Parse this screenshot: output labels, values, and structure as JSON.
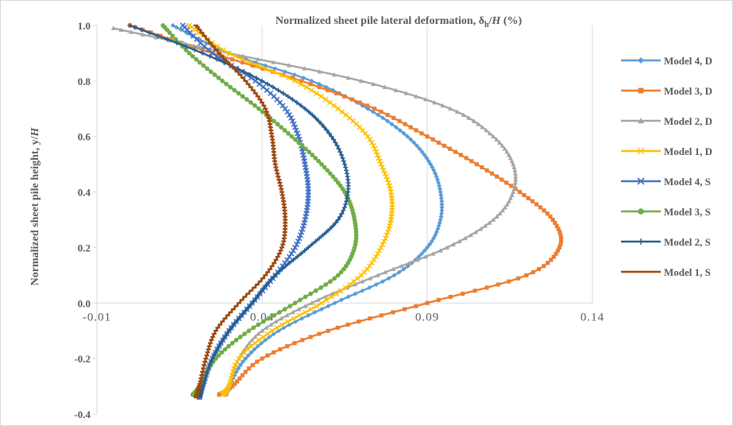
{
  "chart_data": {
    "type": "line",
    "title": "Normalized sheet pile  lateral  deformation, δh/H (%)",
    "title_parts": {
      "pre": "Normalized sheet pile  lateral  deformation, δ",
      "sub": "h",
      "slash": "/",
      "italic": "H",
      "post": " (%)"
    },
    "ylabel": "Normalized sheet pile height, y/H",
    "ylabel_parts": {
      "pre": "Normalized sheet pile height, y/",
      "italic": "H"
    },
    "xlabel": "",
    "xlim": [
      -0.01,
      0.14
    ],
    "ylim": [
      -0.4,
      1.0
    ],
    "x_ticks": [
      "-0.01",
      "0.04",
      "0.09",
      "0.14"
    ],
    "y_ticks": [
      "1.0",
      "0.8",
      "0.6",
      "0.4",
      "0.2",
      "0.0",
      "-0.2",
      "-0.4"
    ],
    "grid": "vertical",
    "legend_position": "right",
    "series": [
      {
        "name": "Model 4, D",
        "color": "#5b9bd5",
        "marker": "diamond",
        "points": [
          [
            0.013,
            1.0
          ],
          [
            0.03,
            0.9
          ],
          [
            0.055,
            0.8
          ],
          [
            0.072,
            0.7
          ],
          [
            0.084,
            0.6
          ],
          [
            0.091,
            0.5
          ],
          [
            0.094,
            0.4
          ],
          [
            0.094,
            0.3
          ],
          [
            0.09,
            0.2
          ],
          [
            0.08,
            0.1
          ],
          [
            0.062,
            0.0
          ],
          [
            0.045,
            -0.1
          ],
          [
            0.035,
            -0.2
          ],
          [
            0.03,
            -0.3
          ],
          [
            0.029,
            -0.33
          ]
        ]
      },
      {
        "name": "Model 3, D",
        "color": "#ed7d31",
        "marker": "square",
        "points": [
          [
            0.0,
            1.0
          ],
          [
            0.025,
            0.9
          ],
          [
            0.052,
            0.8
          ],
          [
            0.074,
            0.7
          ],
          [
            0.09,
            0.6
          ],
          [
            0.105,
            0.5
          ],
          [
            0.118,
            0.4
          ],
          [
            0.128,
            0.3
          ],
          [
            0.13,
            0.2
          ],
          [
            0.12,
            0.1
          ],
          [
            0.09,
            0.0
          ],
          [
            0.06,
            -0.1
          ],
          [
            0.04,
            -0.2
          ],
          [
            0.031,
            -0.3
          ],
          [
            0.027,
            -0.33
          ]
        ]
      },
      {
        "name": "Model 2, D",
        "color": "#a5a5a5",
        "marker": "triangle",
        "points": [
          [
            -0.005,
            0.99
          ],
          [
            0.03,
            0.9
          ],
          [
            0.07,
            0.8
          ],
          [
            0.097,
            0.7
          ],
          [
            0.11,
            0.6
          ],
          [
            0.116,
            0.5
          ],
          [
            0.116,
            0.4
          ],
          [
            0.11,
            0.3
          ],
          [
            0.096,
            0.2
          ],
          [
            0.075,
            0.1
          ],
          [
            0.055,
            0.0
          ],
          [
            0.04,
            -0.1
          ],
          [
            0.033,
            -0.2
          ],
          [
            0.03,
            -0.3
          ],
          [
            0.029,
            -0.33
          ]
        ]
      },
      {
        "name": "Model 1, D",
        "color": "#ffc000",
        "marker": "cross",
        "points": [
          [
            0.018,
            1.0
          ],
          [
            0.03,
            0.9
          ],
          [
            0.05,
            0.8
          ],
          [
            0.063,
            0.7
          ],
          [
            0.072,
            0.6
          ],
          [
            0.076,
            0.5
          ],
          [
            0.079,
            0.4
          ],
          [
            0.079,
            0.3
          ],
          [
            0.076,
            0.2
          ],
          [
            0.07,
            0.1
          ],
          [
            0.058,
            0.0
          ],
          [
            0.043,
            -0.1
          ],
          [
            0.033,
            -0.2
          ],
          [
            0.03,
            -0.3
          ],
          [
            0.028,
            -0.33
          ]
        ]
      },
      {
        "name": "Model 4, S",
        "color": "#4472c4",
        "marker": "x",
        "points": [
          [
            0.016,
            1.0
          ],
          [
            0.025,
            0.9
          ],
          [
            0.038,
            0.8
          ],
          [
            0.047,
            0.7
          ],
          [
            0.051,
            0.6
          ],
          [
            0.053,
            0.5
          ],
          [
            0.054,
            0.4
          ],
          [
            0.053,
            0.3
          ],
          [
            0.05,
            0.2
          ],
          [
            0.044,
            0.1
          ],
          [
            0.037,
            0.0
          ],
          [
            0.03,
            -0.1
          ],
          [
            0.025,
            -0.2
          ],
          [
            0.022,
            -0.3
          ],
          [
            0.021,
            -0.34
          ]
        ]
      },
      {
        "name": "Model 3, S",
        "color": "#70ad47",
        "marker": "circle",
        "points": [
          [
            0.01,
            1.0
          ],
          [
            0.018,
            0.9
          ],
          [
            0.028,
            0.8
          ],
          [
            0.039,
            0.7
          ],
          [
            0.049,
            0.6
          ],
          [
            0.058,
            0.5
          ],
          [
            0.065,
            0.4
          ],
          [
            0.068,
            0.3
          ],
          [
            0.068,
            0.2
          ],
          [
            0.063,
            0.1
          ],
          [
            0.05,
            0.0
          ],
          [
            0.036,
            -0.1
          ],
          [
            0.026,
            -0.2
          ],
          [
            0.021,
            -0.3
          ],
          [
            0.019,
            -0.33
          ]
        ]
      },
      {
        "name": "Model 2, S",
        "color": "#255e91",
        "marker": "plus",
        "points": [
          [
            0.0,
            1.0
          ],
          [
            0.022,
            0.9
          ],
          [
            0.04,
            0.8
          ],
          [
            0.053,
            0.7
          ],
          [
            0.061,
            0.6
          ],
          [
            0.065,
            0.5
          ],
          [
            0.066,
            0.4
          ],
          [
            0.063,
            0.3
          ],
          [
            0.054,
            0.2
          ],
          [
            0.044,
            0.1
          ],
          [
            0.037,
            0.0
          ],
          [
            0.03,
            -0.1
          ],
          [
            0.025,
            -0.2
          ],
          [
            0.022,
            -0.3
          ],
          [
            0.021,
            -0.34
          ]
        ]
      },
      {
        "name": "Model 1, S",
        "color": "#9e480e",
        "marker": "dash",
        "points": [
          [
            0.02,
            1.0
          ],
          [
            0.027,
            0.9
          ],
          [
            0.035,
            0.8
          ],
          [
            0.041,
            0.7
          ],
          [
            0.043,
            0.6
          ],
          [
            0.044,
            0.5
          ],
          [
            0.046,
            0.4
          ],
          [
            0.047,
            0.3
          ],
          [
            0.046,
            0.2
          ],
          [
            0.041,
            0.1
          ],
          [
            0.033,
            0.0
          ],
          [
            0.026,
            -0.1
          ],
          [
            0.023,
            -0.2
          ],
          [
            0.021,
            -0.3
          ],
          [
            0.02,
            -0.34
          ]
        ]
      }
    ]
  }
}
